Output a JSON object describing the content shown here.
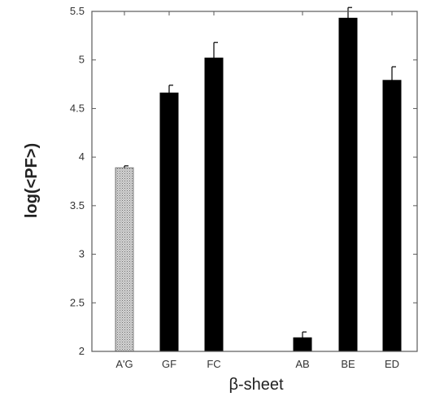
{
  "chart_data": {
    "type": "bar",
    "xlabel": "β-sheet",
    "ylabel": "log(<PF>)",
    "ylim": [
      2,
      5.5
    ],
    "yticks": [
      "2",
      "2.5",
      "3",
      "3.5",
      "4",
      "4.5",
      "5",
      "5.5"
    ],
    "categories": [
      "A'G",
      "GF",
      "FC",
      "AB",
      "BE",
      "ED"
    ],
    "values": [
      3.89,
      4.66,
      5.02,
      2.14,
      5.43,
      4.79
    ],
    "errors": [
      0.02,
      0.08,
      0.16,
      0.06,
      0.11,
      0.14
    ],
    "bar_colors": [
      "#c8c8c8",
      "#000000",
      "#000000",
      "#000000",
      "#000000",
      "#000000"
    ],
    "bar_patterns": [
      "stippled",
      "solid",
      "solid",
      "solid",
      "solid",
      "solid"
    ],
    "grid": false,
    "legend": "none"
  }
}
